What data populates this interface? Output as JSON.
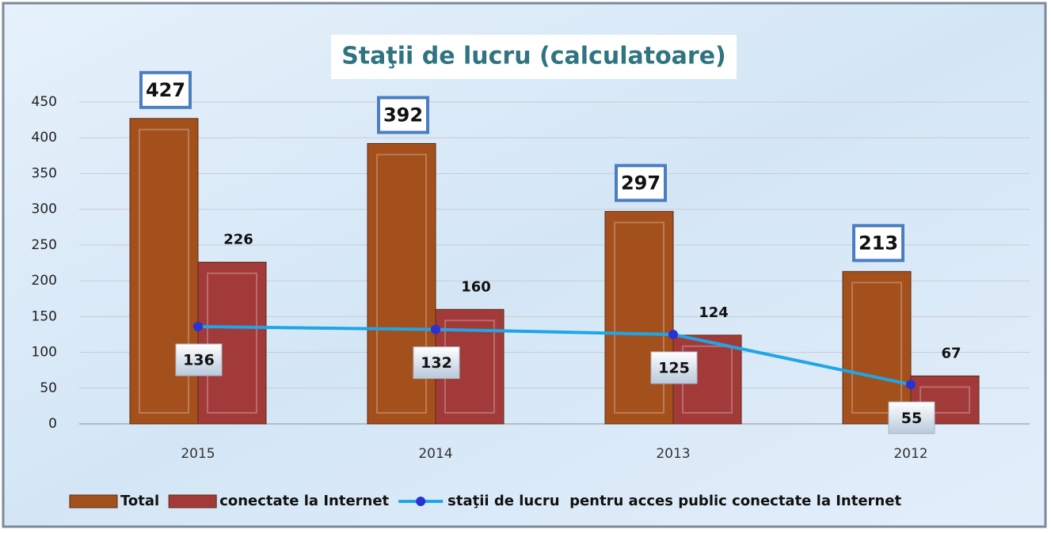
{
  "chart_data": {
    "type": "bar",
    "title": "Staţii de lucru (calculatoare)",
    "categories": [
      "2015",
      "2014",
      "2013",
      "2012"
    ],
    "series": [
      {
        "name": "Total",
        "color": "#a4501c",
        "values": [
          427,
          392,
          297,
          213
        ]
      },
      {
        "name": "conectate la Internet",
        "color": "#a33a3a",
        "values": [
          226,
          160,
          124,
          67
        ]
      },
      {
        "name": "staţii de lucru  pentru acces public conectate la Internet",
        "color": "#1ea6e6",
        "type": "line",
        "marker_color": "#2a32d0",
        "values": [
          136,
          132,
          125,
          55
        ]
      }
    ],
    "ylim": [
      0,
      450
    ],
    "yticks": [
      0,
      50,
      100,
      150,
      200,
      250,
      300,
      350,
      400,
      450
    ],
    "grid": true,
    "legend": "bottom"
  }
}
